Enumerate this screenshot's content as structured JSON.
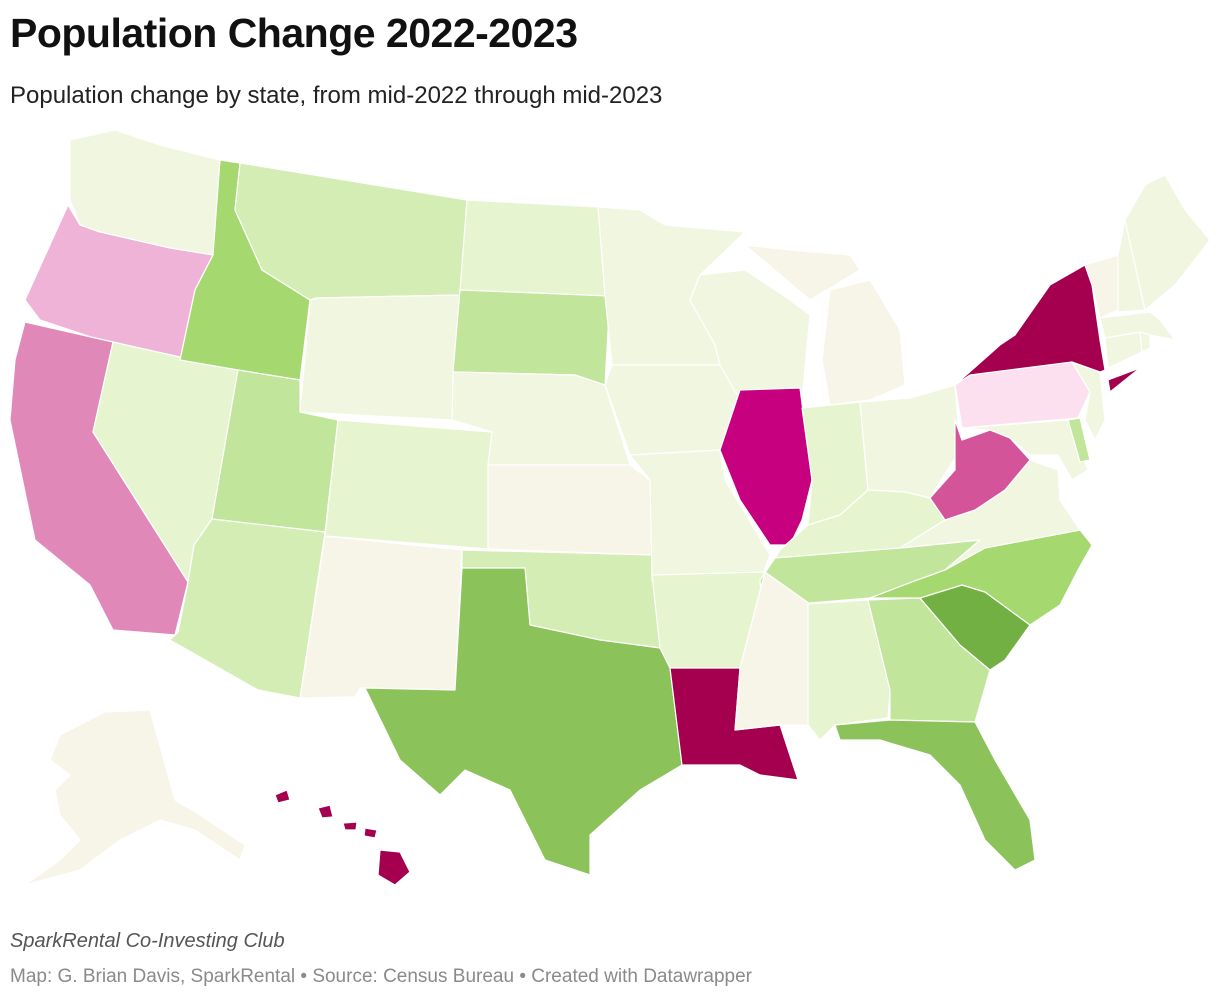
{
  "header": {
    "title": "Population Change 2022-2023",
    "subtitle": "Population change by state, from mid-2022 through mid-2023"
  },
  "footer": {
    "byline": "SparkRental Co-Investing Club",
    "credits": "Map: G. Brian Davis, SparkRental • Source: Census Bureau • Created with Datawrapper"
  },
  "palette": {
    "strong_loss": "#a50050",
    "loss": "#c6007e",
    "moderate_loss": "#d4549a",
    "mild_loss": "#e088b8",
    "slight_loss": "#eeb3d6",
    "minimal_loss": "#fde0ef",
    "neutral": "#f7f5e8",
    "minimal_gain": "#f1f6e0",
    "slight_gain": "#e6f5d0",
    "mild_gain": "#d3edb5",
    "moderate_gain": "#c1e59a",
    "gain": "#a5d86f",
    "strong_gain": "#8bc25a",
    "strongest_gain": "#72b043"
  },
  "map": {
    "states": [
      {
        "id": "WA",
        "bin": "minimal_gain"
      },
      {
        "id": "OR",
        "bin": "slight_loss"
      },
      {
        "id": "CA",
        "bin": "mild_loss"
      },
      {
        "id": "NV",
        "bin": "slight_gain"
      },
      {
        "id": "ID",
        "bin": "gain"
      },
      {
        "id": "MT",
        "bin": "mild_gain"
      },
      {
        "id": "WY",
        "bin": "minimal_gain"
      },
      {
        "id": "UT",
        "bin": "moderate_gain"
      },
      {
        "id": "AZ",
        "bin": "mild_gain"
      },
      {
        "id": "CO",
        "bin": "slight_gain"
      },
      {
        "id": "NM",
        "bin": "neutral"
      },
      {
        "id": "ND",
        "bin": "slight_gain"
      },
      {
        "id": "SD",
        "bin": "moderate_gain"
      },
      {
        "id": "NE",
        "bin": "minimal_gain"
      },
      {
        "id": "KS",
        "bin": "neutral"
      },
      {
        "id": "OK",
        "bin": "mild_gain"
      },
      {
        "id": "TX",
        "bin": "strong_gain"
      },
      {
        "id": "MN",
        "bin": "minimal_gain"
      },
      {
        "id": "IA",
        "bin": "minimal_gain"
      },
      {
        "id": "MO",
        "bin": "minimal_gain"
      },
      {
        "id": "AR",
        "bin": "slight_gain"
      },
      {
        "id": "LA",
        "bin": "strong_loss"
      },
      {
        "id": "WI",
        "bin": "minimal_gain"
      },
      {
        "id": "IL",
        "bin": "loss"
      },
      {
        "id": "MI",
        "bin": "neutral"
      },
      {
        "id": "IN",
        "bin": "slight_gain"
      },
      {
        "id": "OH",
        "bin": "minimal_gain"
      },
      {
        "id": "KY",
        "bin": "slight_gain"
      },
      {
        "id": "TN",
        "bin": "moderate_gain"
      },
      {
        "id": "MS",
        "bin": "neutral"
      },
      {
        "id": "AL",
        "bin": "slight_gain"
      },
      {
        "id": "GA",
        "bin": "moderate_gain"
      },
      {
        "id": "FL",
        "bin": "strong_gain"
      },
      {
        "id": "SC",
        "bin": "strongest_gain"
      },
      {
        "id": "NC",
        "bin": "gain"
      },
      {
        "id": "VA",
        "bin": "minimal_gain"
      },
      {
        "id": "WV",
        "bin": "moderate_loss"
      },
      {
        "id": "MD",
        "bin": "minimal_gain"
      },
      {
        "id": "DE",
        "bin": "moderate_gain"
      },
      {
        "id": "PA",
        "bin": "minimal_loss"
      },
      {
        "id": "NJ",
        "bin": "minimal_gain"
      },
      {
        "id": "NY",
        "bin": "strong_loss"
      },
      {
        "id": "CT",
        "bin": "minimal_gain"
      },
      {
        "id": "RI",
        "bin": "minimal_gain"
      },
      {
        "id": "MA",
        "bin": "minimal_gain"
      },
      {
        "id": "VT",
        "bin": "neutral"
      },
      {
        "id": "NH",
        "bin": "minimal_gain"
      },
      {
        "id": "ME",
        "bin": "minimal_gain"
      },
      {
        "id": "AK",
        "bin": "neutral"
      },
      {
        "id": "HI",
        "bin": "strong_loss"
      }
    ]
  }
}
